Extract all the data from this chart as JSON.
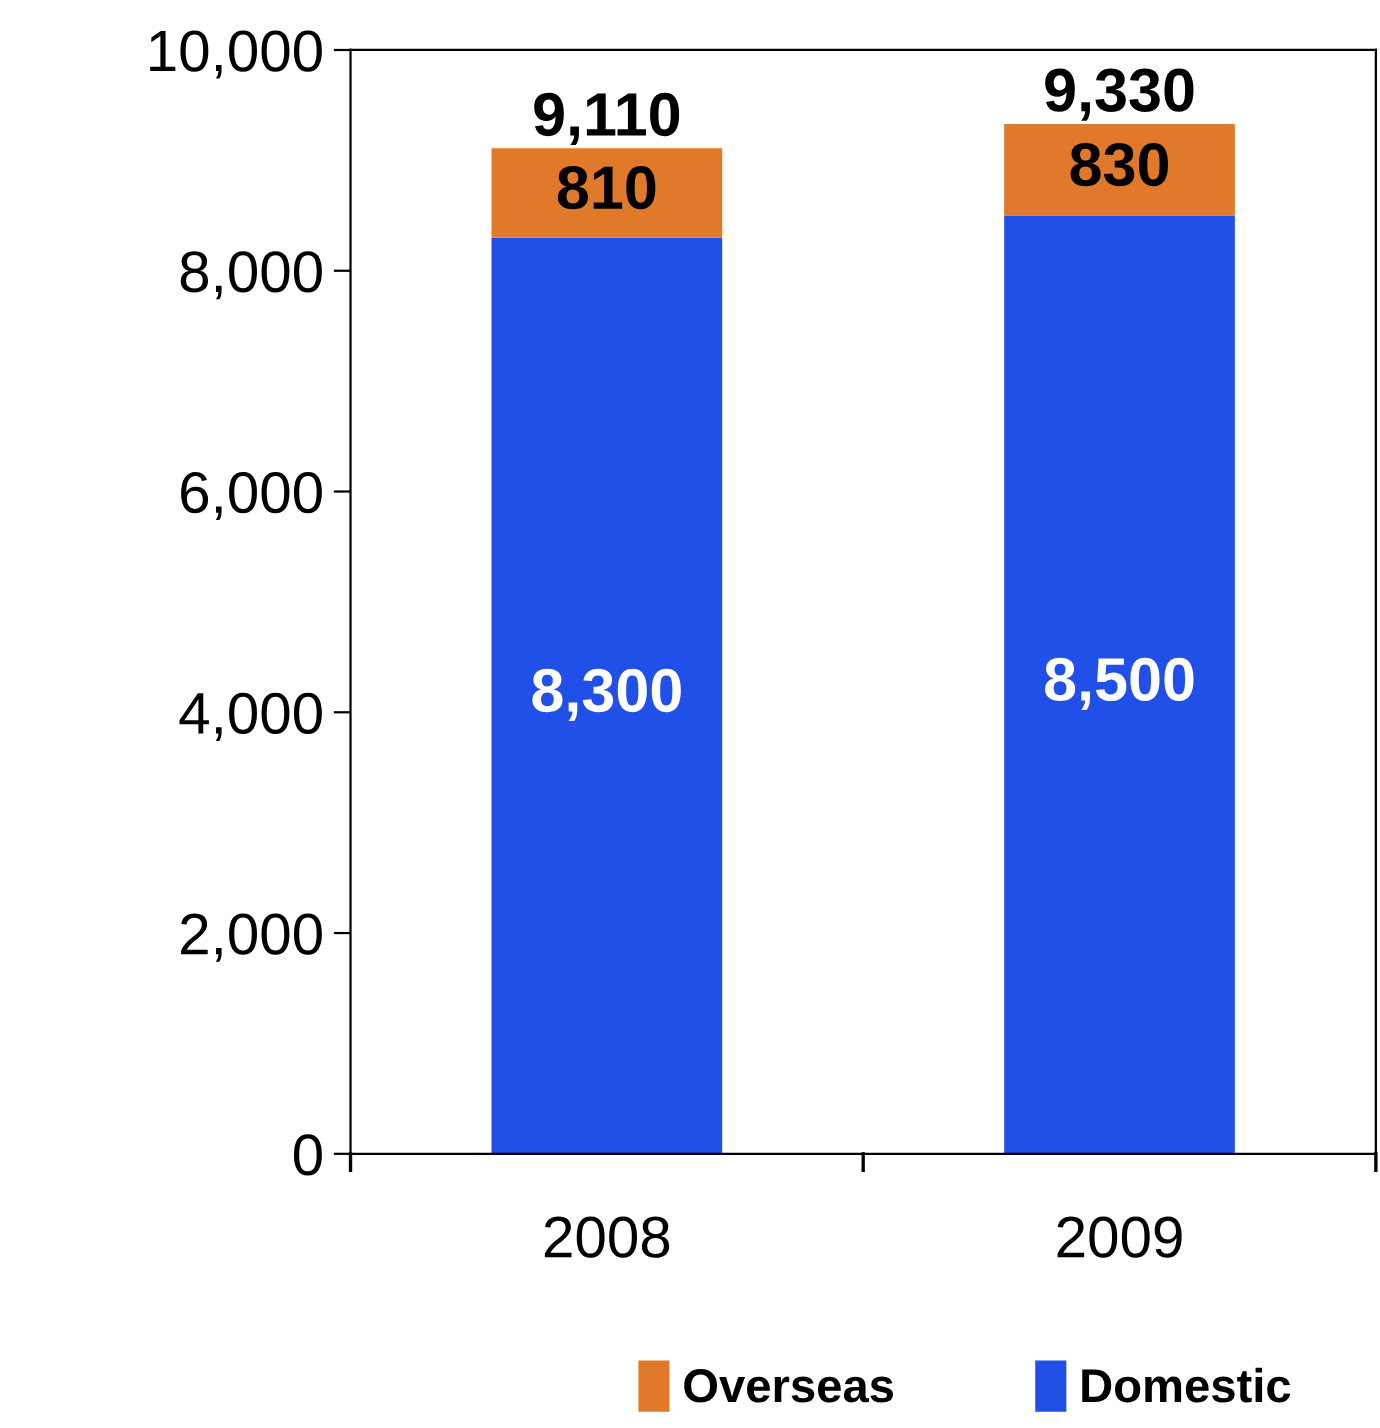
{
  "chart_data": {
    "type": "bar",
    "stacked": true,
    "categories": [
      "2008",
      "2009"
    ],
    "series": [
      {
        "name": "Domestic",
        "color": "#2050e8",
        "values": [
          8300,
          8500
        ],
        "value_labels": [
          "8,300",
          "8,500"
        ]
      },
      {
        "name": "Overseas",
        "color": "#e07a2a",
        "values": [
          810,
          830
        ],
        "value_labels": [
          "810",
          "830"
        ]
      }
    ],
    "totals": [
      "9,110",
      "9,330"
    ],
    "ylim": [
      0,
      10000
    ],
    "yticks": [
      {
        "value": 0,
        "label": "0"
      },
      {
        "value": 2000,
        "label": "2,000"
      },
      {
        "value": 4000,
        "label": "4,000"
      },
      {
        "value": 6000,
        "label": "6,000"
      },
      {
        "value": 8000,
        "label": "8,000"
      },
      {
        "value": 10000,
        "label": "10,000"
      }
    ],
    "grid": false,
    "legend": "bottom"
  }
}
